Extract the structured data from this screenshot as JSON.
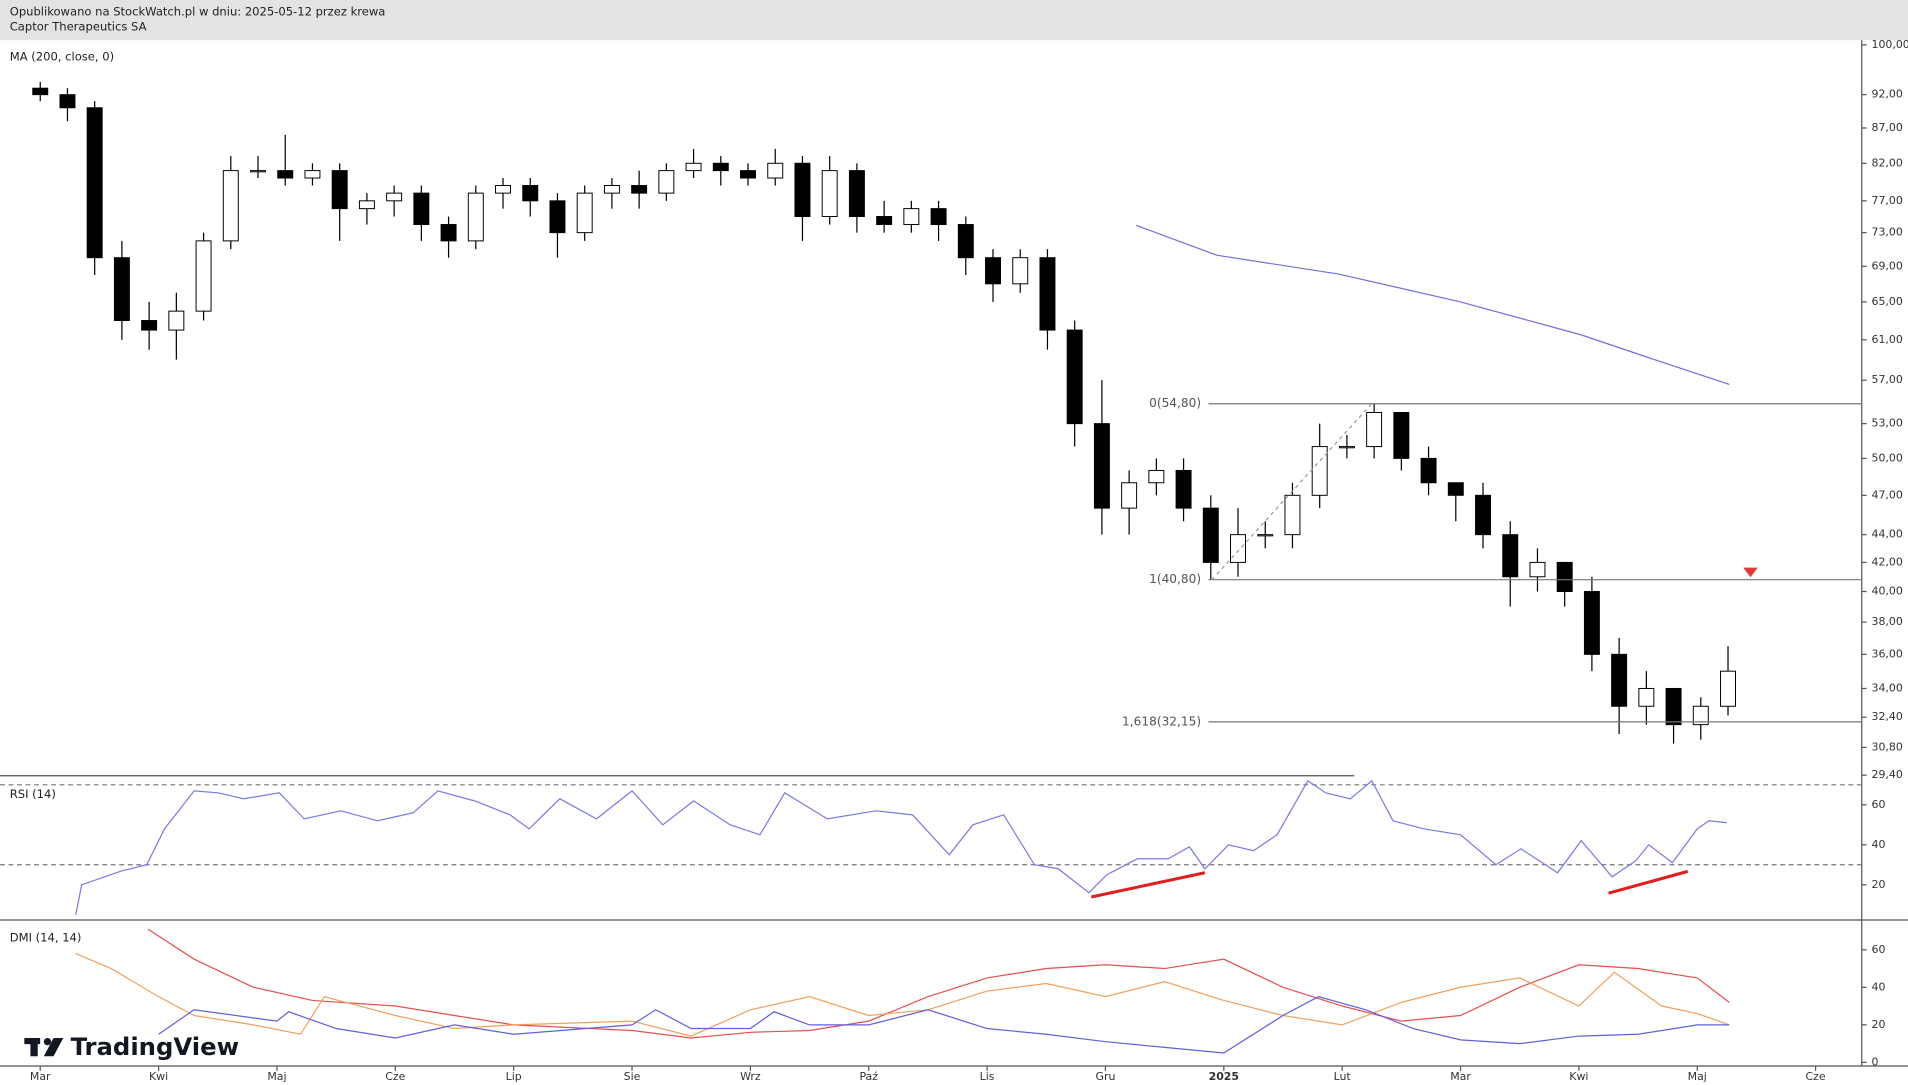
{
  "header": {
    "line1": "Opublikowano na StockWatch.pl w dniu: 2025-05-12 przez krewa",
    "line2": "Captor Therapeutics SA"
  },
  "chart_data": [
    {
      "type": "candlestick",
      "title": "MA (200, close, 0)",
      "log_scale": true,
      "ylim": [
        29.4,
        100.8
      ],
      "yticks": [
        {
          "value": 100,
          "label": "100,00"
        },
        {
          "value": 92,
          "label": "92,00"
        },
        {
          "value": 87,
          "label": "87,00"
        },
        {
          "value": 82,
          "label": "82,00"
        },
        {
          "value": 77,
          "label": "77,00"
        },
        {
          "value": 73,
          "label": "73,00"
        },
        {
          "value": 69,
          "label": "69,00"
        },
        {
          "value": 65,
          "label": "65,00"
        },
        {
          "value": 61,
          "label": "61,00"
        },
        {
          "value": 57,
          "label": "57,00"
        },
        {
          "value": 53,
          "label": "53,00"
        },
        {
          "value": 50,
          "label": "50,00"
        },
        {
          "value": 47,
          "label": "47,00"
        },
        {
          "value": 44,
          "label": "44,00"
        },
        {
          "value": 42,
          "label": "42,00"
        },
        {
          "value": 40,
          "label": "40,00"
        },
        {
          "value": 38,
          "label": "38,00"
        },
        {
          "value": 36,
          "label": "36,00"
        },
        {
          "value": 34,
          "label": "34,00"
        },
        {
          "value": 32.4,
          "label": "32,40"
        },
        {
          "value": 30.8,
          "label": "30,80"
        },
        {
          "value": 29.4,
          "label": "29,40"
        }
      ],
      "x": [
        0,
        0.23,
        0.46,
        0.69,
        0.92,
        1.15,
        1.38,
        1.61,
        1.84,
        2.07,
        2.3,
        2.53,
        2.76,
        2.99,
        3.22,
        3.45,
        3.68,
        3.91,
        4.14,
        4.37,
        4.6,
        4.83,
        5.06,
        5.29,
        5.52,
        5.75,
        5.98,
        6.21,
        6.44,
        6.67,
        6.9,
        7.13,
        7.36,
        7.59,
        7.82,
        8.05,
        8.28,
        8.51,
        8.74,
        8.97,
        9.2,
        9.43,
        9.66,
        9.89,
        10.12,
        10.35,
        10.58,
        10.81,
        11.04,
        11.27,
        11.5,
        11.73,
        11.96,
        12.19,
        12.42,
        12.65,
        12.88,
        13.11,
        13.34,
        13.57,
        13.8,
        14.03,
        14.26
      ],
      "open": [
        93,
        92,
        90,
        70,
        63,
        62,
        64,
        72,
        81,
        81,
        80,
        81,
        76,
        77,
        78,
        74,
        72,
        78,
        79,
        77,
        73,
        78,
        79,
        78,
        81,
        82,
        81,
        80,
        82,
        75,
        81,
        75,
        74,
        76,
        74,
        70,
        67,
        70,
        62,
        53,
        46,
        48,
        49,
        46,
        42,
        44,
        44,
        47,
        51,
        51,
        54,
        50,
        48,
        47,
        44,
        41,
        42,
        40,
        36,
        33,
        34,
        32,
        33
      ],
      "high": [
        94,
        93,
        91,
        72,
        65,
        66,
        73,
        83,
        83,
        86,
        82,
        82,
        78,
        79,
        79,
        75,
        79,
        80,
        80,
        78,
        79,
        80,
        81,
        82,
        84,
        83,
        82,
        84,
        83,
        83,
        82,
        77,
        77,
        77,
        75,
        71,
        71,
        71,
        63,
        57,
        49,
        50,
        50,
        47,
        46,
        45,
        48,
        53,
        52,
        54.8,
        54,
        51,
        48,
        48,
        45,
        43,
        42,
        41,
        37,
        35,
        34,
        33.5,
        36.5
      ],
      "low": [
        91,
        88,
        68,
        61,
        60,
        59,
        63,
        71,
        80,
        79,
        79,
        72,
        74,
        75,
        72,
        70,
        71,
        76,
        75,
        70,
        72,
        76,
        76,
        77,
        80,
        79,
        79,
        79,
        72,
        74,
        73,
        73,
        73,
        72,
        68,
        65,
        66,
        60,
        51,
        44,
        44,
        47,
        45,
        40.8,
        41,
        43,
        43,
        46,
        50,
        50,
        49,
        47,
        45,
        43,
        39,
        40,
        39,
        35,
        31.5,
        32,
        31,
        31.2,
        32.5
      ],
      "close": [
        92,
        90,
        70,
        63,
        62,
        64,
        72,
        81,
        81,
        80,
        81,
        76,
        77,
        78,
        74,
        72,
        78,
        79,
        77,
        73,
        78,
        79,
        78,
        81,
        82,
        81,
        80,
        82,
        75,
        81,
        75,
        74,
        76,
        74,
        70,
        67,
        70,
        62,
        53,
        46,
        48,
        49,
        46,
        42,
        44,
        44,
        47,
        51,
        51,
        54,
        50,
        48,
        47,
        44,
        41,
        42,
        40,
        36,
        33,
        34,
        32,
        33,
        35
      ],
      "up_color": "#ffffff",
      "down_color": "#000000",
      "ma": {
        "x": [
          9.26,
          9.94,
          10.97,
          12,
          13.02,
          13.64,
          14.27
        ],
        "values": [
          73.9,
          70.3,
          68.1,
          65,
          61.5,
          59,
          56.6
        ],
        "color": "#7070dd"
      },
      "fib_start": 9.87,
      "fib_levels": [
        {
          "value": 54.8,
          "label": "0(54,80)"
        },
        {
          "value": 40.8,
          "label": "1(40,80)"
        },
        {
          "value": 32.15,
          "label": "1,618(32,15)"
        }
      ],
      "trend_line": {
        "x": [
          9.9,
          11.25
        ],
        "y": [
          40.8,
          54.8
        ]
      },
      "alert_marker": {
        "x": 14.45,
        "y": 41.3,
        "color": "#e53935"
      }
    },
    {
      "type": "line",
      "title": "RSI (14)",
      "ylim": [
        3,
        73
      ],
      "yticks": [
        20,
        40,
        60
      ],
      "bands": [
        30,
        70
      ],
      "color": "#7a7ae6",
      "x": [
        0.3,
        0.35,
        0.69,
        0.9,
        1.05,
        1.3,
        1.5,
        1.72,
        2.02,
        2.23,
        2.54,
        2.85,
        3.15,
        3.36,
        3.67,
        3.97,
        4.13,
        4.39,
        4.7,
        5.0,
        5.26,
        5.52,
        5.83,
        6.08,
        6.29,
        6.65,
        7.06,
        7.37,
        7.68,
        7.88,
        8.14,
        8.4,
        8.6,
        8.86,
        9.01,
        9.27,
        9.53,
        9.71,
        9.84,
        10.04,
        10.25,
        10.45,
        10.71,
        10.86,
        11.07,
        11.25,
        11.43,
        11.69,
        12.0,
        12.3,
        12.51,
        12.82,
        13.02,
        13.28,
        13.48,
        13.59,
        13.79,
        14.0,
        14.1,
        14.25
      ],
      "values": [
        5,
        20,
        27,
        30,
        48,
        67,
        66,
        63,
        66,
        53,
        57,
        52,
        56,
        67,
        62,
        55,
        48,
        63,
        53,
        67,
        50,
        62,
        50,
        45,
        66,
        53,
        57,
        55,
        35,
        50,
        55,
        30,
        28,
        16,
        25,
        33,
        33,
        39,
        28,
        40,
        37,
        45,
        72,
        66,
        63,
        72,
        52,
        48,
        45,
        30,
        38,
        26,
        42,
        24,
        32,
        40,
        31,
        48,
        52,
        51
      ],
      "divergences": [
        {
          "x": [
            8.88,
            9.84
          ],
          "y": [
            13.9,
            26
          ],
          "color": "#e31e1e"
        },
        {
          "x": [
            13.25,
            13.92
          ],
          "y": [
            15.8,
            26.7
          ],
          "color": "#e31e1e"
        }
      ]
    },
    {
      "type": "line",
      "title": "DMI (14, 14)",
      "ylim": [
        -1.3,
        72
      ],
      "yticks": [
        0,
        20,
        40,
        60
      ],
      "watermark": "TradingView",
      "xlim": [
        -0.34,
        15.39
      ],
      "xticks": [
        {
          "value": 0,
          "label": "Mar"
        },
        {
          "value": 1,
          "label": "Kwi"
        },
        {
          "value": 2,
          "label": "Maj"
        },
        {
          "value": 3,
          "label": "Cze"
        },
        {
          "value": 4,
          "label": "Lip"
        },
        {
          "value": 5,
          "label": "Sie"
        },
        {
          "value": 6,
          "label": "Wrz"
        },
        {
          "value": 7,
          "label": "Paź"
        },
        {
          "value": 8,
          "label": "Lis"
        },
        {
          "value": 9,
          "label": "Gru"
        },
        {
          "value": 10,
          "label": "2025"
        },
        {
          "value": 11,
          "label": "Lut"
        },
        {
          "value": 12,
          "label": "Mar"
        },
        {
          "value": 13,
          "label": "Kwi"
        },
        {
          "value": 14,
          "label": "Maj"
        },
        {
          "value": 15,
          "label": "Cze"
        }
      ],
      "series": [
        {
          "color": "#e85050",
          "x": [
            0.91,
            1.3,
            1.8,
            2.3,
            3,
            3.5,
            4,
            5,
            5.5,
            6,
            6.5,
            7,
            7.5,
            8,
            8.5,
            9,
            9.5,
            10,
            10.5,
            11,
            11.5,
            12,
            12.5,
            13,
            13.5,
            14,
            14.27
          ],
          "values": [
            71,
            55,
            40,
            33,
            30,
            25,
            20,
            17,
            13,
            16,
            17,
            22,
            35,
            45,
            50,
            52,
            50,
            55,
            40,
            30,
            22,
            25,
            40,
            52,
            50,
            45,
            32
          ]
        },
        {
          "color": "#f5a05a",
          "x": [
            0.3,
            0.6,
            1,
            1.3,
            1.8,
            2.2,
            2.4,
            3,
            3.5,
            4,
            5,
            5.5,
            6,
            6.5,
            7,
            7.5,
            8,
            8.5,
            9,
            9.5,
            10,
            10.5,
            11,
            11.5,
            12,
            12.5,
            13,
            13.3,
            13.7,
            14,
            14.27
          ],
          "values": [
            58,
            50,
            35,
            25,
            20,
            15,
            35,
            25,
            18,
            20,
            22,
            14,
            28,
            35,
            25,
            28,
            38,
            42,
            35,
            43,
            33,
            25,
            20,
            32,
            40,
            45,
            30,
            48,
            30,
            26,
            20
          ]
        },
        {
          "color": "#6060e0",
          "x": [
            1,
            1.3,
            2,
            2.1,
            2.5,
            3,
            3.5,
            4,
            5,
            5.2,
            5.5,
            6,
            6.2,
            6.5,
            7,
            7.5,
            8,
            8.5,
            9,
            9.5,
            10,
            10.5,
            10.8,
            11.2,
            11.6,
            12,
            12.5,
            13,
            13.5,
            14,
            14.27
          ],
          "values": [
            15,
            28,
            22,
            27,
            18,
            13,
            20,
            15,
            20,
            28,
            18,
            18,
            27,
            20,
            20,
            28,
            18,
            15,
            11,
            8,
            5,
            25,
            35,
            28,
            18,
            12,
            10,
            14,
            15,
            20,
            20
          ]
        }
      ]
    }
  ]
}
